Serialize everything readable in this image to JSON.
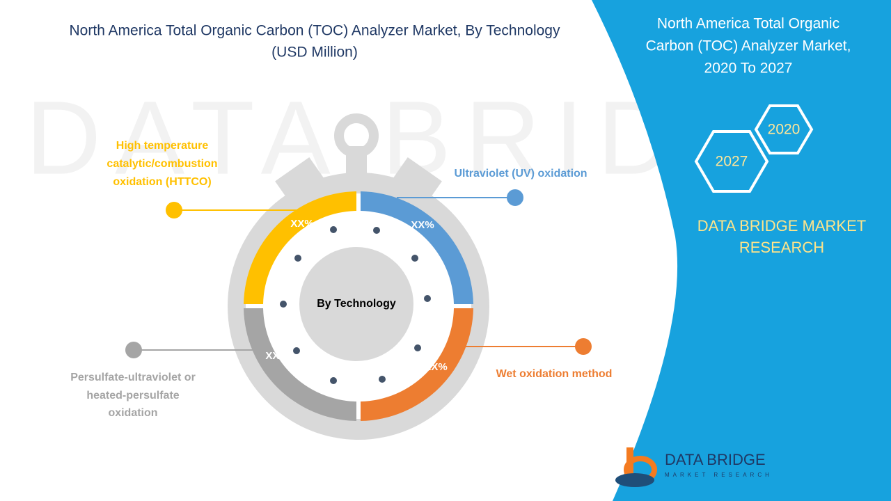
{
  "header": {
    "title_lines": [
      "North America Total Organic Carbon (TOC) Analyzer Market, By Technology",
      "(USD Million)"
    ]
  },
  "diagram": {
    "center_label": "By Technology",
    "segments": [
      {
        "label_lines": [
          "High temperature",
          "catalytic/combustion",
          "oxidation (HTTCO)"
        ],
        "value_label": "XX%"
      },
      {
        "label_lines": [
          "Ultraviolet (UV) oxidation"
        ],
        "value_label": "XX%"
      },
      {
        "label_lines": [
          "Wet oxidation method"
        ],
        "value_label": "XX%"
      },
      {
        "label_lines": [
          "Persulfate-ultraviolet or",
          "heated-persulfate",
          "oxidation"
        ],
        "value_label": "XX%"
      }
    ]
  },
  "panel": {
    "title_lines": [
      "North America Total Organic",
      "Carbon (TOC) Analyzer Market,",
      "2020 To 2027"
    ],
    "years": [
      "2020",
      "2027"
    ],
    "brand_lines": [
      "DATA BRIDGE MARKET",
      "RESEARCH"
    ]
  },
  "logo": {
    "name": "DATA BRIDGE",
    "tagline": "MARKET RESEARCH"
  }
}
